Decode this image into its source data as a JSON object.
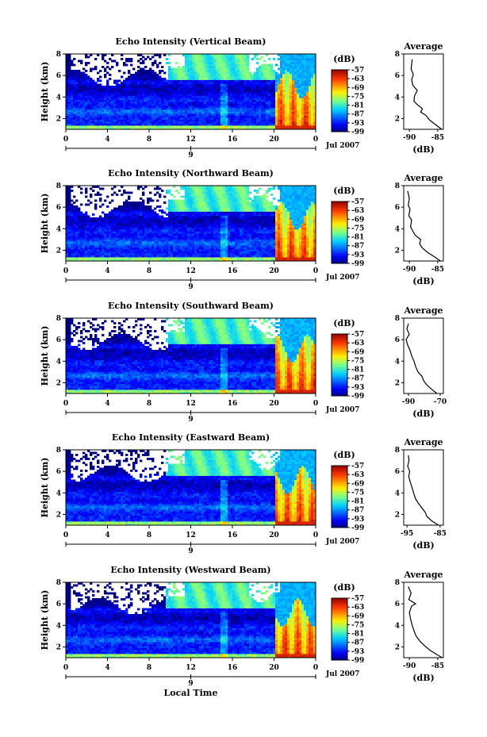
{
  "figure": {
    "xlabel": "Local Time"
  },
  "panel_defaults": {
    "ylabel": "Height (km)",
    "x_ticks": [
      "0",
      "4",
      "8",
      "12",
      "16",
      "20",
      "0"
    ],
    "y_ticks": [
      "2",
      "4",
      "6",
      "8"
    ],
    "date_tick": "9",
    "date_note": "Jul 2007",
    "colorbar_unit": "(dB)",
    "colorbar_ticks": [
      "-57",
      "-63",
      "-69",
      "-75",
      "-81",
      "-87",
      "-93",
      "-99"
    ],
    "profile_title": "Average",
    "profile_xlabel": "(dB)"
  },
  "chart_data": [
    {
      "type": "heatmap",
      "title": "Echo Intensity (Vertical Beam)",
      "ylabel": "Height (km)",
      "xlabel": "",
      "xlim": [
        0,
        24
      ],
      "ylim": [
        1,
        8
      ],
      "zlim": [
        -99,
        -57
      ],
      "colorbar_label": "(dB)",
      "profile": {
        "type": "line",
        "title": "Average",
        "xlabel": "(dB)",
        "x_ticks": [
          "-90",
          "-85"
        ],
        "xlim": [
          -91,
          -84
        ],
        "x": [
          -84.3,
          -85.3,
          -86.5,
          -87.1,
          -88.0,
          -87.7,
          -88.6,
          -89.2,
          -89.1,
          -88.6,
          -89.4,
          -89.6,
          -89.3,
          -89.7,
          -89.5
        ],
        "y": [
          1.0,
          1.4,
          1.9,
          2.3,
          2.6,
          2.9,
          3.3,
          3.6,
          4.1,
          4.6,
          5.1,
          5.6,
          6.1,
          6.6,
          7.5
        ]
      }
    },
    {
      "type": "heatmap",
      "title": "Echo Intensity (Northward Beam)",
      "ylabel": "Height (km)",
      "xlabel": "",
      "xlim": [
        0,
        24
      ],
      "ylim": [
        1,
        8
      ],
      "zlim": [
        -99,
        -57
      ],
      "colorbar_label": "(dB)",
      "profile": {
        "type": "line",
        "title": "Average",
        "xlabel": "(dB)",
        "x_ticks": [
          "-90",
          "-85"
        ],
        "xlim": [
          -91,
          -84
        ],
        "x": [
          -84.5,
          -85.6,
          -86.8,
          -87.7,
          -88.2,
          -88.0,
          -89.0,
          -89.4,
          -89.8,
          -89.6,
          -90.1,
          -89.9,
          -90.2,
          -90.0,
          -90.3
        ],
        "y": [
          1.0,
          1.4,
          1.8,
          2.2,
          2.6,
          3.0,
          3.4,
          3.8,
          4.2,
          4.8,
          5.2,
          5.8,
          6.2,
          6.8,
          7.5
        ]
      }
    },
    {
      "type": "heatmap",
      "title": "Echo Intensity (Southward Beam)",
      "ylabel": "Height (km)",
      "xlabel": "",
      "xlim": [
        0,
        24
      ],
      "ylim": [
        1,
        8
      ],
      "zlim": [
        -99,
        -57
      ],
      "colorbar_label": "(dB)",
      "profile": {
        "type": "line",
        "title": "Average",
        "xlabel": "(dB)",
        "x_ticks": [
          "-90",
          "-70"
        ],
        "xlim": [
          -93,
          -68
        ],
        "x": [
          -72.0,
          -75.5,
          -78.5,
          -80.5,
          -81.5,
          -84.0,
          -85.5,
          -86.5,
          -88.0,
          -89.0,
          -90.5,
          -91.5,
          -89.5,
          -91.0,
          -90.0
        ],
        "y": [
          1.0,
          1.4,
          1.8,
          2.2,
          2.6,
          3.0,
          3.5,
          4.0,
          4.5,
          5.0,
          5.5,
          6.0,
          6.5,
          7.0,
          7.5
        ]
      }
    },
    {
      "type": "heatmap",
      "title": "Echo Intensity (Eastward Beam)",
      "ylabel": "Height (km)",
      "xlabel": "",
      "xlim": [
        0,
        24
      ],
      "ylim": [
        1,
        8
      ],
      "zlim": [
        -99,
        -57
      ],
      "colorbar_label": "(dB)",
      "profile": {
        "type": "line",
        "title": "Average",
        "xlabel": "(dB)",
        "x_ticks": [
          "-95",
          "-85"
        ],
        "xlim": [
          -96,
          -84
        ],
        "x": [
          -85.5,
          -87.5,
          -89.0,
          -89.5,
          -90.5,
          -91.5,
          -92.5,
          -93.0,
          -93.5,
          -94.0,
          -94.5,
          -94.2,
          -94.8,
          -94.4,
          -94.6
        ],
        "y": [
          1.0,
          1.4,
          1.8,
          2.2,
          2.6,
          3.0,
          3.5,
          4.0,
          4.5,
          5.0,
          5.5,
          6.0,
          6.5,
          7.0,
          7.5
        ]
      }
    },
    {
      "type": "heatmap",
      "title": "Echo Intensity (Westward Beam)",
      "ylabel": "Height (km)",
      "xlabel": "Local Time",
      "xlim": [
        0,
        24
      ],
      "ylim": [
        1,
        8
      ],
      "zlim": [
        -99,
        -57
      ],
      "colorbar_label": "(dB)",
      "profile": {
        "type": "line",
        "title": "Average",
        "xlabel": "(dB)",
        "x_ticks": [
          "-90",
          "-85"
        ],
        "xlim": [
          -91,
          -84
        ],
        "x": [
          -84.2,
          -85.2,
          -86.4,
          -87.3,
          -88.1,
          -88.8,
          -89.2,
          -89.5,
          -89.8,
          -90.0,
          -89.6,
          -88.9,
          -90.1,
          -89.7,
          -90.2
        ],
        "y": [
          1.0,
          1.3,
          1.7,
          2.1,
          2.5,
          3.0,
          3.5,
          4.0,
          4.6,
          5.2,
          5.8,
          6.0,
          6.4,
          7.0,
          7.6
        ]
      }
    }
  ]
}
